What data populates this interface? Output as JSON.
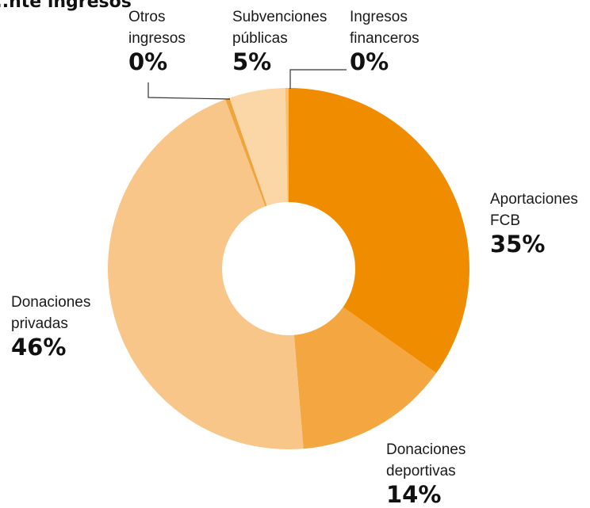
{
  "chart_data": {
    "type": "pie",
    "donut": true,
    "title": "...nte ingresos",
    "categories": [
      "Aportaciones FCB",
      "Donaciones deportivas",
      "Donaciones privadas",
      "Otros ingresos",
      "Subvenciones públicas",
      "Ingresos financeros"
    ],
    "labels": [
      {
        "line1": "Aportaciones",
        "line2": "FCB",
        "pct": "35%"
      },
      {
        "line1": "Donaciones",
        "line2": "deportivas",
        "pct": "14%"
      },
      {
        "line1": "Donaciones",
        "line2": "privadas",
        "pct": "46%"
      },
      {
        "line1": "Otros",
        "line2": "ingresos",
        "pct": "0%"
      },
      {
        "line1": "Subvenciones",
        "line2": "públicas",
        "pct": "5%"
      },
      {
        "line1": "Ingresos",
        "line2": "financeros",
        "pct": "0%"
      }
    ],
    "values": [
      34.8,
      13.9,
      45.6,
      0.4,
      5.0,
      0.3
    ],
    "colors": [
      "#f08c00",
      "#f4a640",
      "#f8c688",
      "#f0a43c",
      "#fbd7a8",
      "#f7c070"
    ]
  }
}
